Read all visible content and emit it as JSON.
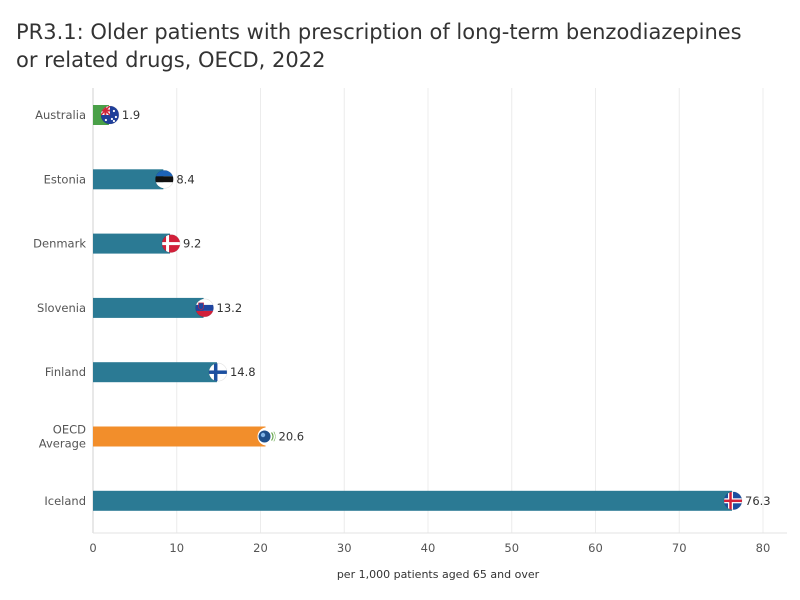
{
  "title_lines": [
    "PR3.1: Older patients with prescription of long-term benzodiazepines",
    "or related drugs, OECD, 2022"
  ],
  "chart_data": {
    "type": "bar",
    "orientation": "horizontal",
    "title": "PR3.1: Older patients with prescription of long-term benzodiazepines or related drugs, OECD, 2022",
    "xlabel": "per 1,000 patients aged 65 and over",
    "ylabel": "",
    "xlim": [
      0,
      80
    ],
    "xticks": [
      0,
      10,
      20,
      30,
      40,
      50,
      60,
      70,
      80
    ],
    "grid": "vertical",
    "categories": [
      "Australia",
      "Estonia",
      "Denmark",
      "Slovenia",
      "Finland",
      "OECD Average",
      "Iceland"
    ],
    "category_label_lines": [
      [
        "Australia"
      ],
      [
        "Estonia"
      ],
      [
        "Denmark"
      ],
      [
        "Slovenia"
      ],
      [
        "Finland"
      ],
      [
        "OECD",
        "Average"
      ],
      [
        "Iceland"
      ]
    ],
    "values": [
      1.9,
      8.4,
      9.2,
      13.2,
      14.8,
      20.6,
      76.3
    ],
    "value_labels": [
      "1.9",
      "8.4",
      "9.2",
      "13.2",
      "14.8",
      "20.6",
      "76.3"
    ],
    "highlight_color": "#f28e2b",
    "bar_colors": [
      "#4aa048",
      "#2b7a94",
      "#2b7a94",
      "#2b7a94",
      "#2b7a94",
      "#f28e2b",
      "#2b7a94"
    ],
    "flag_icons": [
      "australia-flag-icon",
      "estonia-flag-icon",
      "denmark-flag-icon",
      "slovenia-flag-icon",
      "finland-flag-icon",
      "oecd-logo-icon",
      "iceland-flag-icon"
    ]
  }
}
